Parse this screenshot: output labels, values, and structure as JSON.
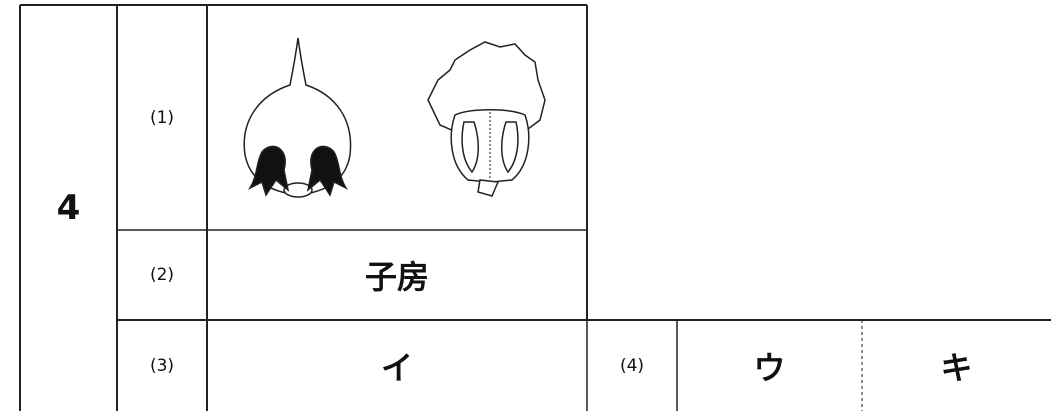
{
  "question_number": "4",
  "items": [
    {
      "label": "(1)"
    },
    {
      "label": "(2)",
      "answer": "子房"
    },
    {
      "label": "(3)",
      "answer": "イ"
    },
    {
      "label": "(4)",
      "answers": [
        "ウ",
        "キ"
      ]
    }
  ]
}
